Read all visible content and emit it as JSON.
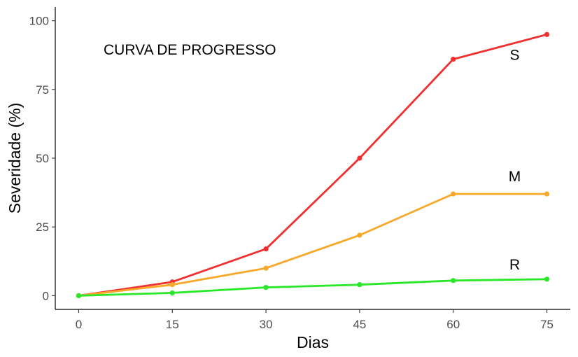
{
  "chart_data": {
    "type": "line",
    "title": "",
    "annotation": "CURVA DE PROGRESSO",
    "xlabel": "Dias",
    "ylabel": "Severidade (%)",
    "x": [
      0,
      15,
      30,
      45,
      60,
      75
    ],
    "xticks": [
      "0",
      "15",
      "30",
      "45",
      "60",
      "75"
    ],
    "yticks": [
      "0",
      "25",
      "50",
      "75",
      "100"
    ],
    "xlim": [
      -3.75,
      78.75
    ],
    "ylim": [
      -5,
      105
    ],
    "grid": false,
    "series": [
      {
        "name": "S",
        "color": "#f03030",
        "values": [
          0,
          5,
          17,
          50,
          86,
          95
        ]
      },
      {
        "name": "M",
        "color": "#f8a828",
        "values": [
          0,
          4,
          10,
          22,
          37,
          37
        ]
      },
      {
        "name": "R",
        "color": "#28e828",
        "values": [
          0,
          1,
          3,
          4,
          5.5,
          6
        ]
      }
    ]
  }
}
